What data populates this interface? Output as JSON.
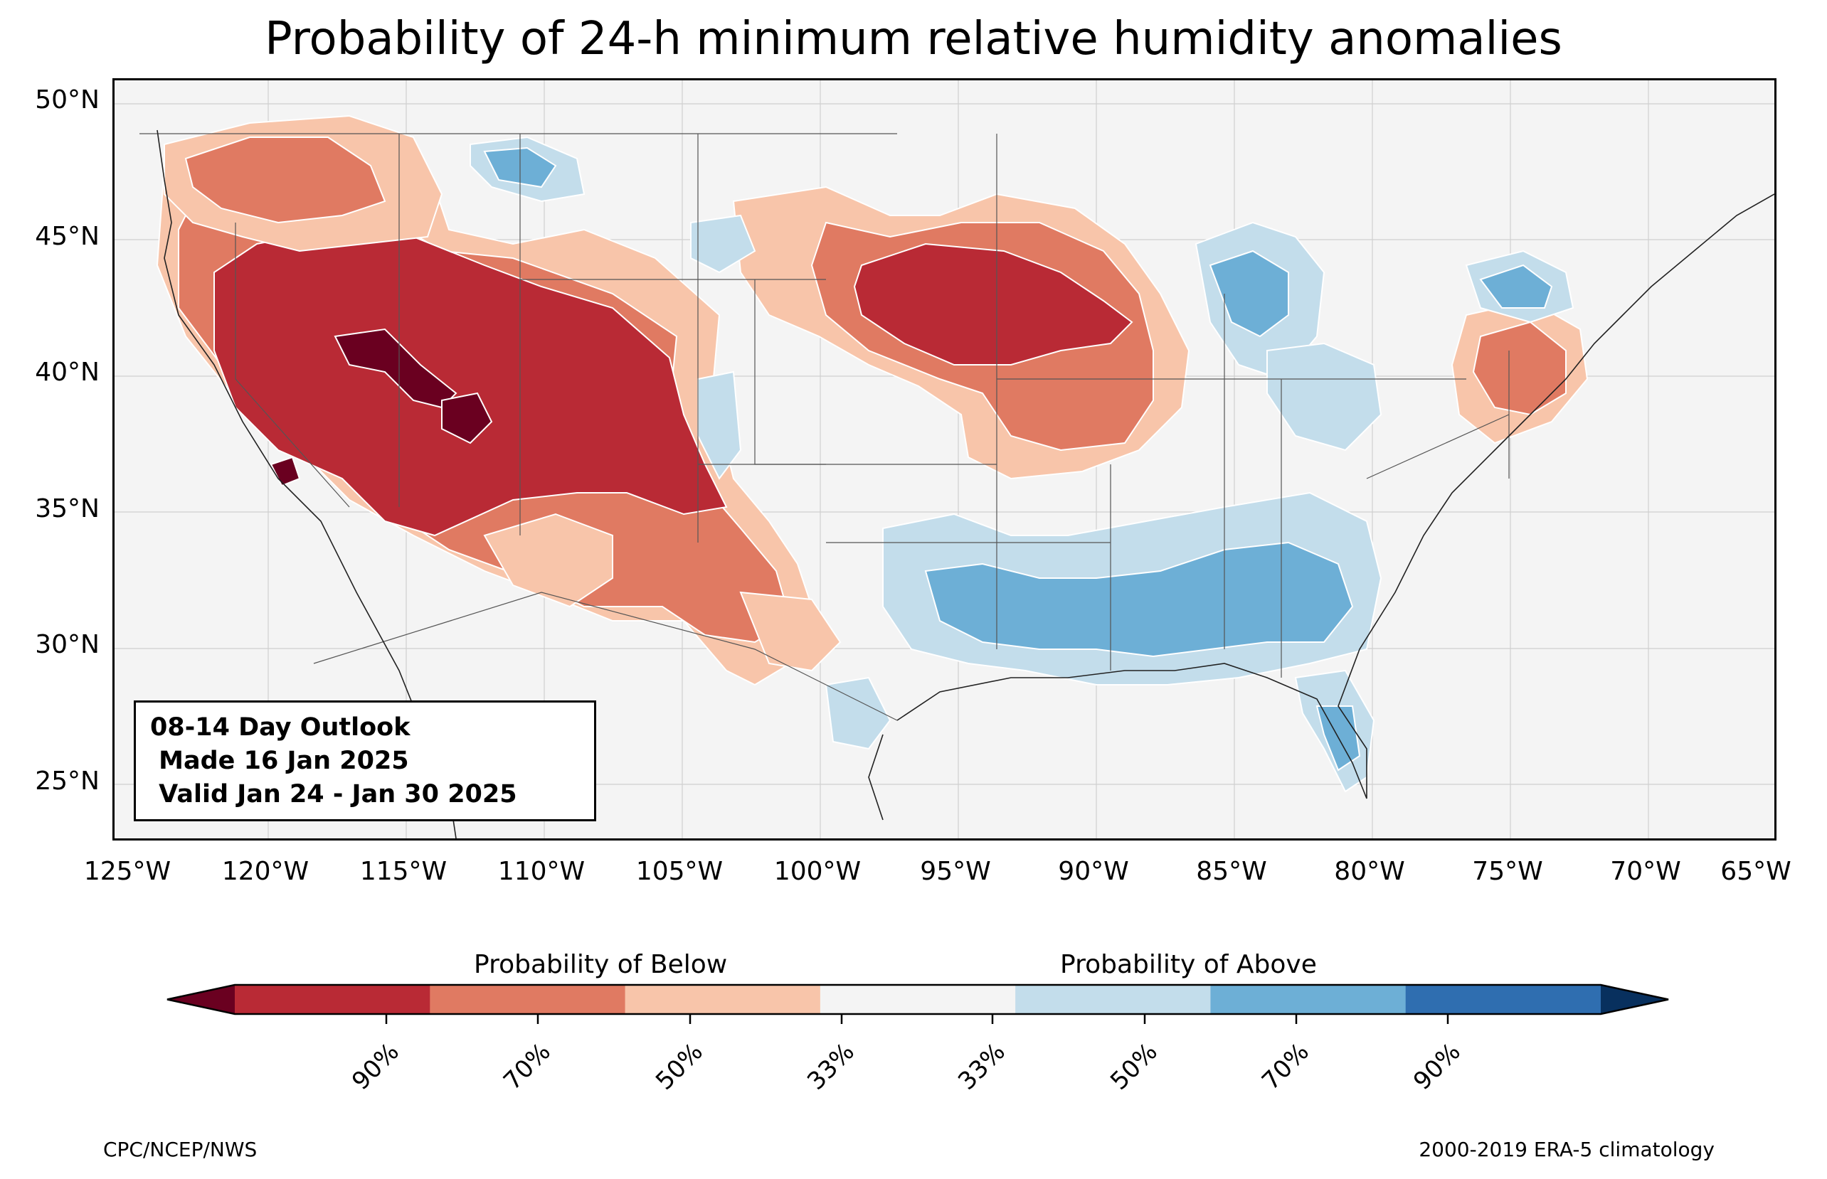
{
  "title": "Probability of 24-h minimum relative humidity anomalies",
  "info_box": {
    "line1": "08-14 Day Outlook",
    "line2": " Made 16 Jan 2025",
    "line3": " Valid Jan 24 - Jan 30 2025"
  },
  "latitude_labels": [
    "50°N",
    "45°N",
    "40°N",
    "35°N",
    "30°N",
    "25°N"
  ],
  "longitude_labels": [
    "125°W",
    "120°W",
    "115°W",
    "110°W",
    "105°W",
    "100°W",
    "95°W",
    "90°W",
    "85°W",
    "80°W",
    "75°W",
    "70°W",
    "65°W"
  ],
  "colorbar": {
    "below_heading": "Probability of Below",
    "above_heading": "Probability of Above",
    "tick_labels": [
      "90%",
      "70%",
      "50%",
      "33%",
      "33%",
      "50%",
      "70%",
      "90%"
    ],
    "colors": [
      "#67001f",
      "#b2182b",
      "#d6604d",
      "#f4a582",
      "#f4f4f4",
      "#d1e5f0",
      "#92c5de",
      "#4393c3",
      "#053061"
    ],
    "colors_rendered": [
      "#6a0020",
      "#b92a35",
      "#e07a62",
      "#f8c5aa",
      "#f4f4f4",
      "#c3ddeb",
      "#6dafd6",
      "#2f6eb0",
      "#08305e"
    ]
  },
  "footer": {
    "left": "CPC/NCEP/NWS",
    "right": "2000-2019 ERA-5 climatology"
  }
}
